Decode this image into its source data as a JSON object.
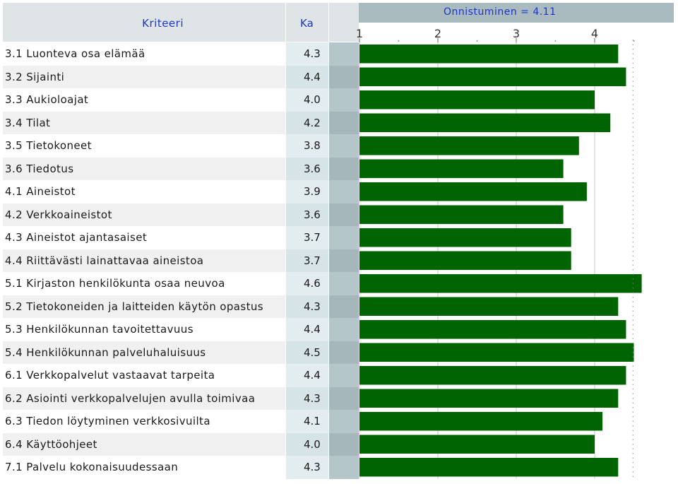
{
  "header": {
    "criteria_label": "Kriteeri",
    "avg_label": "Ka",
    "success_label": "Onnistuminen = 4.11"
  },
  "chart_data": {
    "type": "bar",
    "orientation": "horizontal",
    "title": "Onnistuminen = 4.11",
    "overall_value": 4.11,
    "xlim": [
      1,
      4.6
    ],
    "xticks": [
      "1",
      "2",
      "3",
      "4"
    ],
    "grid": true,
    "bar_color": "#006400",
    "categories": [
      "3.1 Luonteva osa elämää",
      "3.2 Sijainti",
      "3.3 Aukioloajat",
      "3.4 Tilat",
      "3.5 Tietokoneet",
      "3.6 Tiedotus",
      "4.1 Aineistot",
      "4.2 Verkkoaineistot",
      "4.3 Aineistot ajantasaiset",
      "4.4 Riittävästi lainattavaa aineistoa",
      "5.1 Kirjaston henkilökunta osaa neuvoa",
      "5.2 Tietokoneiden ja laitteiden käytön opastus",
      "5.3 Henkilökunnan tavoitettavuus",
      "5.4 Henkilökunnan palveluhaluisuus",
      "6.1 Verkkopalvelut vastaavat tarpeita",
      "6.2 Asiointi verkkopalvelujen avulla toimivaa",
      "6.3 Tiedon löytyminen verkkosivuilta",
      "6.4 Käyttöohjeet",
      "7.1 Palvelu kokonaisuudessaan"
    ],
    "ka_labels": [
      "4.3",
      "4.4",
      "4.0",
      "4.2",
      "3.8",
      "3.6",
      "3.9",
      "3.6",
      "3.7",
      "3.7",
      "4.6",
      "4.3",
      "4.4",
      "4.5",
      "4.4",
      "4.3",
      "4.1",
      "4.0",
      "4.3"
    ],
    "values": [
      4.3,
      4.4,
      4.0,
      4.2,
      3.8,
      3.6,
      3.9,
      3.6,
      3.7,
      3.7,
      4.6,
      4.3,
      4.4,
      4.5,
      4.4,
      4.3,
      4.1,
      4.0,
      4.3
    ]
  }
}
